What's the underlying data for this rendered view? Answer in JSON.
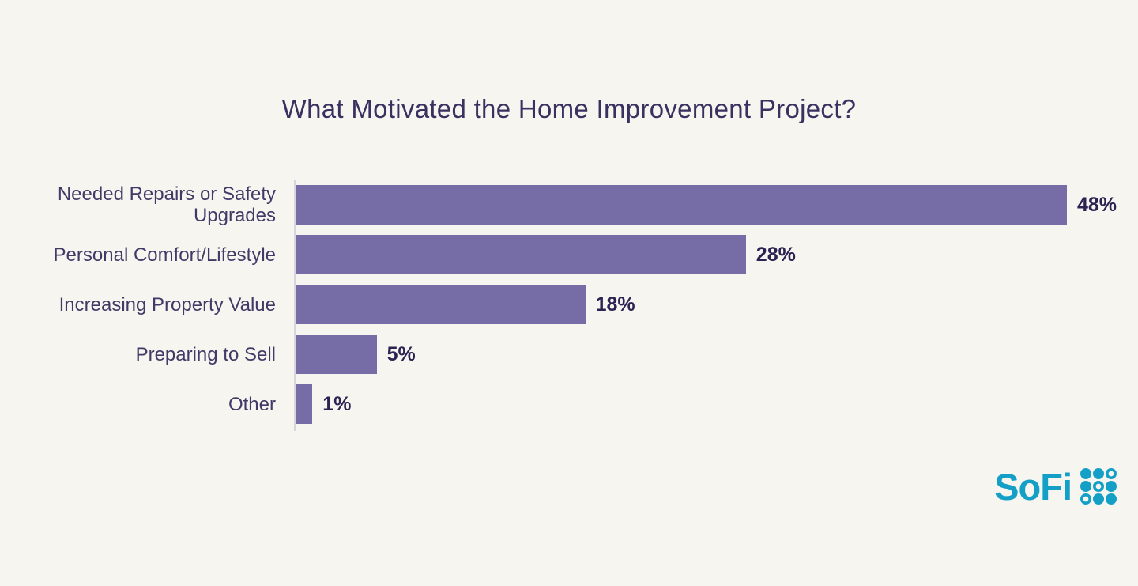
{
  "chart_data": {
    "type": "bar",
    "orientation": "horizontal",
    "title": "What Motivated the Home Improvement Project?",
    "categories": [
      "Needed Repairs or Safety Upgrades",
      "Personal Comfort/Lifestyle",
      "Increasing Property Value",
      "Preparing to Sell",
      "Other"
    ],
    "values": [
      48,
      28,
      18,
      5,
      1
    ],
    "value_labels": [
      "48%",
      "28%",
      "18%",
      "5%",
      "1%"
    ],
    "xlim": [
      0,
      52
    ],
    "grid": false,
    "legend": false,
    "bar_color": "#766ca6",
    "axis_line_color": "#d9d5de",
    "value_label_color": "#2b2351",
    "category_label_color": "#413a66",
    "title_color": "#393160",
    "background_color": "#f7f5f0"
  },
  "branding": {
    "logo_text": "SoFi",
    "logo_color": "#14a0c6"
  }
}
